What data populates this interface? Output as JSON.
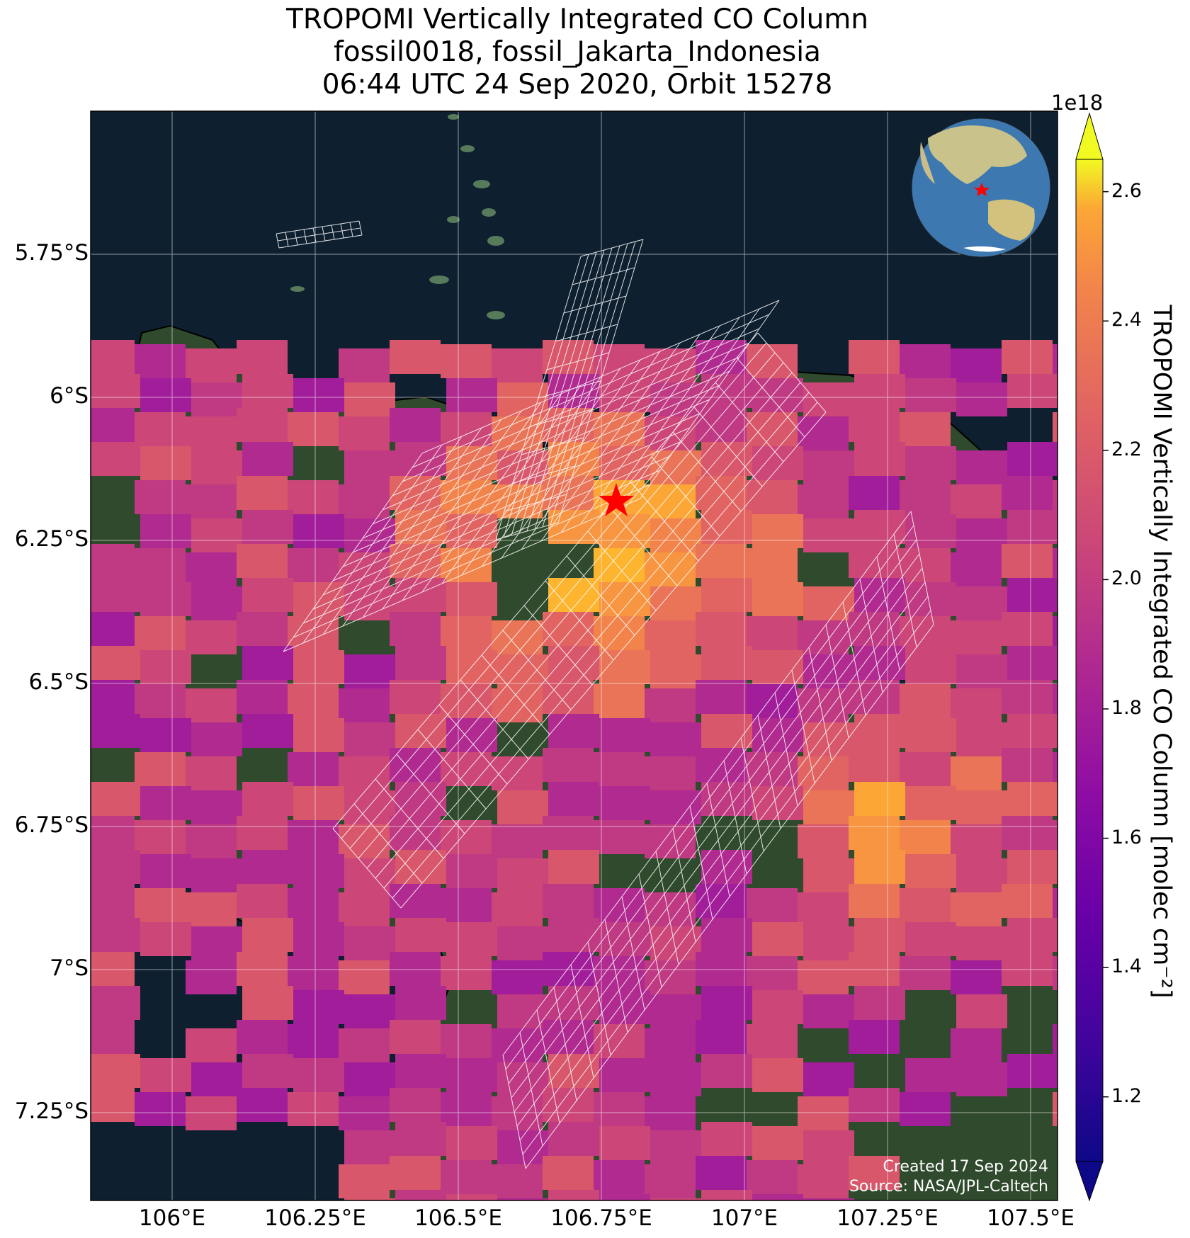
{
  "title": {
    "line1": "TROPOMI Vertically Integrated CO Column",
    "line2": "fossil0018, fossil_Jakarta_Indonesia",
    "line3": "06:44 UTC 24 Sep 2020, Orbit 15278"
  },
  "axes": {
    "lat_labels": [
      "5.75°S",
      "6°S",
      "6.25°S",
      "6.5°S",
      "6.75°S",
      "7°S",
      "7.25°S"
    ],
    "lon_labels": [
      "106°E",
      "106.25°E",
      "106.5°E",
      "106.75°E",
      "107°E",
      "107.25°E",
      "107.5°E"
    ],
    "lon_range": [
      105.87,
      107.56
    ],
    "lat_range": [
      -5.5,
      -7.4
    ]
  },
  "site": {
    "name": "fossil_Jakarta_Indonesia",
    "id": "fossil0018",
    "lon": 106.8,
    "lat": -6.17,
    "marker": "red-star"
  },
  "colorbar": {
    "label": "TROPOMI Vertically Integrated CO Column [molec cm⁻²]",
    "exponent": "1e18",
    "ticks": [
      "2.6",
      "2.4",
      "2.2",
      "2.0",
      "1.8",
      "1.6",
      "1.4",
      "1.2"
    ],
    "tick_values": [
      2.6,
      2.4,
      2.2,
      2.0,
      1.8,
      1.6,
      1.4,
      1.2
    ],
    "range": [
      1.1,
      2.65
    ],
    "colormap": "plasma",
    "extend": "both"
  },
  "credits": {
    "created": "Created 17 Sep 2024",
    "source": "Source: NASA/JPL-Caltech"
  },
  "inset": {
    "type": "globe-locator",
    "marker": "red-star"
  },
  "colors": {
    "ocean": "#0e1f2f",
    "land": "#2f4a2c",
    "coastline": "#000000",
    "gridline": "#ffffff",
    "site_marker": "#ff0000",
    "unfilled_footprint": "#ffffff"
  }
}
